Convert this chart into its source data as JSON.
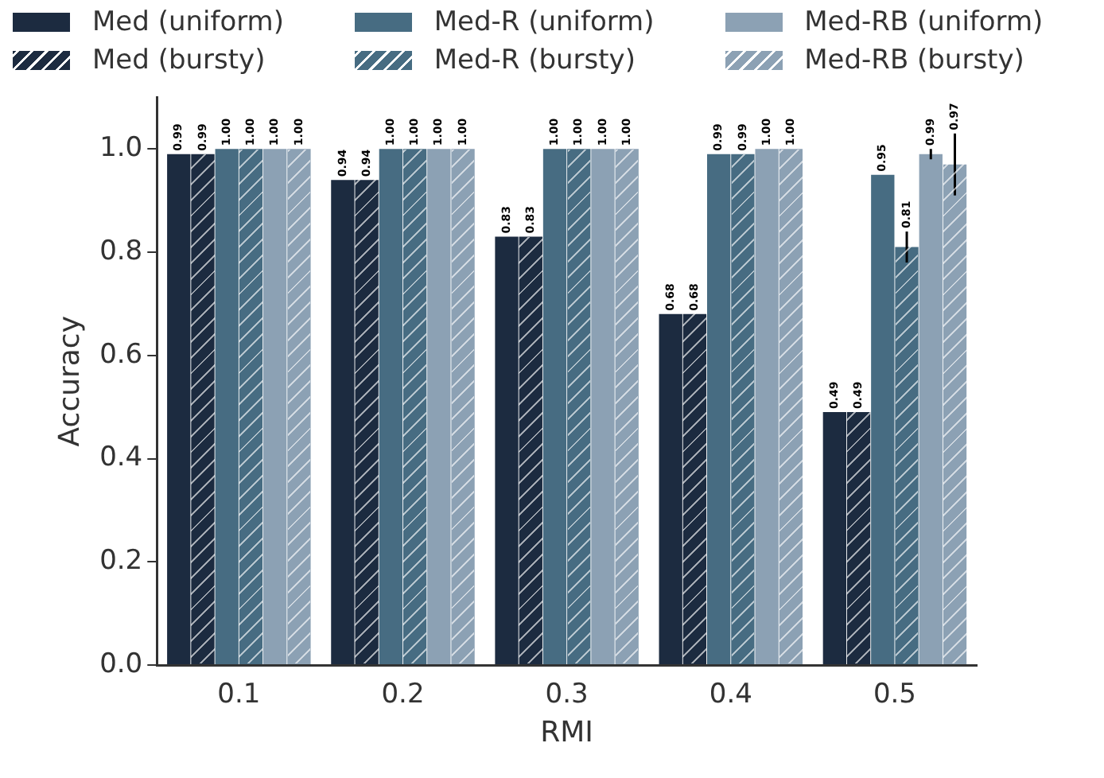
{
  "chart_data": {
    "type": "bar",
    "xlabel": "RMI",
    "ylabel": "Accuracy",
    "categories": [
      "0.1",
      "0.2",
      "0.3",
      "0.4",
      "0.5"
    ],
    "series": [
      {
        "name": "Med (uniform)",
        "color": "#1c2b40",
        "values": [
          0.99,
          0.94,
          0.83,
          0.68,
          0.49
        ],
        "value_labels": [
          "0.99",
          "0.94",
          "0.83",
          "0.68",
          "0.49"
        ]
      },
      {
        "name": "Med (bursty)",
        "color": "#1c2b40",
        "values": [
          0.99,
          0.94,
          0.83,
          0.68,
          0.49
        ],
        "value_labels": [
          "0.99",
          "0.94",
          "0.83",
          "0.68",
          "0.49"
        ]
      },
      {
        "name": "Med-R (uniform)",
        "color": "#476c82",
        "values": [
          1.0,
          1.0,
          1.0,
          0.99,
          0.95
        ],
        "value_labels": [
          "1.00",
          "1.00",
          "1.00",
          "0.99",
          "0.95"
        ]
      },
      {
        "name": "Med-R (bursty)",
        "color": "#476c82",
        "values": [
          1.0,
          1.0,
          1.0,
          0.99,
          0.81
        ],
        "value_labels": [
          "1.00",
          "1.00",
          "1.00",
          "0.99",
          "0.81"
        ],
        "errors": [
          null,
          null,
          null,
          null,
          0.03
        ]
      },
      {
        "name": "Med-RB (uniform)",
        "color": "#8ca1b4",
        "values": [
          1.0,
          1.0,
          1.0,
          1.0,
          0.99
        ],
        "value_labels": [
          "1.00",
          "1.00",
          "1.00",
          "1.00",
          "0.99"
        ],
        "errors": [
          null,
          null,
          null,
          null,
          0.01
        ]
      },
      {
        "name": "Med-RB (bursty)",
        "color": "#8ca1b4",
        "values": [
          1.0,
          1.0,
          1.0,
          1.0,
          0.97
        ],
        "value_labels": [
          "1.00",
          "1.00",
          "1.00",
          "1.00",
          "0.97"
        ],
        "errors": [
          null,
          null,
          null,
          null,
          0.06
        ]
      }
    ],
    "ylim": [
      0,
      1.1
    ],
    "yticks": [
      {
        "value": 0,
        "label": "0.0"
      },
      {
        "value": 0.2,
        "label": "0.2"
      },
      {
        "value": 0.4,
        "label": "0.4"
      },
      {
        "value": 0.6,
        "label": "0.6"
      },
      {
        "value": 0.8,
        "label": "0.8"
      },
      {
        "value": 1.0,
        "label": "1.0"
      }
    ],
    "grid": false,
    "legend": "top"
  }
}
